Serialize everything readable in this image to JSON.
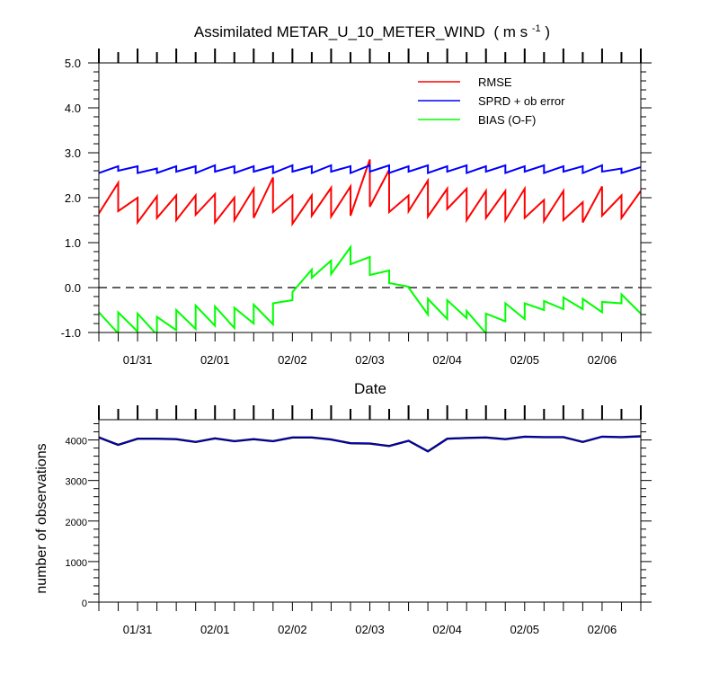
{
  "chart_data": [
    {
      "type": "line",
      "title": "Assimilated METAR_U_10_METER_WIND",
      "title_units": "( m s",
      "title_units_sup": "-1",
      "title_units_end": " )",
      "xlabel": "Date",
      "ylabel": "",
      "ylim": [
        -1.0,
        5.0
      ],
      "yticks": [
        "-1.0",
        "0.0",
        "1.0",
        "2.0",
        "3.0",
        "4.0",
        "5.0"
      ],
      "xlim": [
        0,
        7.0
      ],
      "xtick_labels": [
        "01/31",
        "02/01",
        "02/02",
        "02/03",
        "02/04",
        "02/05",
        "02/06"
      ],
      "xtick_positions": [
        0.5,
        1.5,
        2.5,
        3.5,
        4.5,
        5.5,
        6.5
      ],
      "zero_line": true,
      "legend_position": "top-right",
      "series": [
        {
          "name": "RMSE",
          "color": "#ff0000",
          "segments": [
            [
              [
                0.0,
                1.65
              ],
              [
                0.25,
                2.33
              ]
            ],
            [
              [
                0.25,
                1.7
              ],
              [
                0.5,
                2.0
              ]
            ],
            [
              [
                0.5,
                1.45
              ],
              [
                0.75,
                2.03
              ]
            ],
            [
              [
                0.75,
                1.55
              ],
              [
                1.0,
                2.05
              ]
            ],
            [
              [
                1.0,
                1.5
              ],
              [
                1.25,
                2.05
              ]
            ],
            [
              [
                1.25,
                1.62
              ],
              [
                1.5,
                2.08
              ]
            ],
            [
              [
                1.5,
                1.45
              ],
              [
                1.75,
                2.0
              ]
            ],
            [
              [
                1.75,
                1.5
              ],
              [
                2.0,
                2.2
              ]
            ],
            [
              [
                2.0,
                1.55
              ],
              [
                2.25,
                2.45
              ]
            ],
            [
              [
                2.25,
                1.68
              ],
              [
                2.5,
                2.05
              ]
            ],
            [
              [
                2.5,
                1.42
              ],
              [
                2.75,
                2.05
              ]
            ],
            [
              [
                2.75,
                1.6
              ],
              [
                3.0,
                2.22
              ]
            ],
            [
              [
                3.0,
                1.58
              ],
              [
                3.25,
                2.25
              ]
            ],
            [
              [
                3.25,
                1.6
              ],
              [
                3.5,
                2.85
              ]
            ],
            [
              [
                3.5,
                1.8
              ],
              [
                3.75,
                2.62
              ]
            ],
            [
              [
                3.75,
                1.68
              ],
              [
                4.0,
                2.05
              ]
            ],
            [
              [
                4.0,
                1.7
              ],
              [
                4.25,
                2.38
              ]
            ],
            [
              [
                4.25,
                1.58
              ],
              [
                4.5,
                2.2
              ]
            ],
            [
              [
                4.5,
                1.75
              ],
              [
                4.75,
                2.2
              ]
            ],
            [
              [
                4.75,
                1.5
              ],
              [
                5.0,
                2.15
              ]
            ],
            [
              [
                5.0,
                1.55
              ],
              [
                5.25,
                2.15
              ]
            ],
            [
              [
                5.25,
                1.5
              ],
              [
                5.5,
                2.2
              ]
            ],
            [
              [
                5.5,
                1.55
              ],
              [
                5.75,
                1.95
              ]
            ],
            [
              [
                5.75,
                1.48
              ],
              [
                6.0,
                2.15
              ]
            ],
            [
              [
                6.0,
                1.5
              ],
              [
                6.25,
                1.9
              ]
            ],
            [
              [
                6.25,
                1.45
              ],
              [
                6.5,
                2.25
              ]
            ],
            [
              [
                6.5,
                1.6
              ],
              [
                6.75,
                2.05
              ]
            ],
            [
              [
                6.75,
                1.55
              ],
              [
                7.0,
                2.15
              ]
            ]
          ]
        },
        {
          "name": "SPRD + ob error",
          "color": "#0000ff",
          "segments": [
            [
              [
                0.0,
                2.55
              ],
              [
                0.25,
                2.7
              ]
            ],
            [
              [
                0.25,
                2.6
              ],
              [
                0.5,
                2.7
              ]
            ],
            [
              [
                0.5,
                2.55
              ],
              [
                0.75,
                2.65
              ]
            ],
            [
              [
                0.75,
                2.55
              ],
              [
                1.0,
                2.7
              ]
            ],
            [
              [
                1.0,
                2.58
              ],
              [
                1.25,
                2.7
              ]
            ],
            [
              [
                1.25,
                2.55
              ],
              [
                1.5,
                2.72
              ]
            ],
            [
              [
                1.5,
                2.58
              ],
              [
                1.75,
                2.7
              ]
            ],
            [
              [
                1.75,
                2.55
              ],
              [
                2.0,
                2.7
              ]
            ],
            [
              [
                2.0,
                2.58
              ],
              [
                2.25,
                2.7
              ]
            ],
            [
              [
                2.25,
                2.55
              ],
              [
                2.5,
                2.72
              ]
            ],
            [
              [
                2.5,
                2.58
              ],
              [
                2.75,
                2.7
              ]
            ],
            [
              [
                2.75,
                2.55
              ],
              [
                3.0,
                2.72
              ]
            ],
            [
              [
                3.0,
                2.58
              ],
              [
                3.25,
                2.7
              ]
            ],
            [
              [
                3.25,
                2.55
              ],
              [
                3.5,
                2.72
              ]
            ],
            [
              [
                3.5,
                2.58
              ],
              [
                3.75,
                2.72
              ]
            ],
            [
              [
                3.75,
                2.55
              ],
              [
                4.0,
                2.7
              ]
            ],
            [
              [
                4.0,
                2.58
              ],
              [
                4.25,
                2.72
              ]
            ],
            [
              [
                4.25,
                2.55
              ],
              [
                4.5,
                2.7
              ]
            ],
            [
              [
                4.5,
                2.58
              ],
              [
                4.75,
                2.72
              ]
            ],
            [
              [
                4.75,
                2.55
              ],
              [
                5.0,
                2.7
              ]
            ],
            [
              [
                5.0,
                2.58
              ],
              [
                5.25,
                2.72
              ]
            ],
            [
              [
                5.25,
                2.55
              ],
              [
                5.5,
                2.7
              ]
            ],
            [
              [
                5.5,
                2.58
              ],
              [
                5.75,
                2.72
              ]
            ],
            [
              [
                5.75,
                2.55
              ],
              [
                6.0,
                2.7
              ]
            ],
            [
              [
                6.0,
                2.58
              ],
              [
                6.25,
                2.7
              ]
            ],
            [
              [
                6.25,
                2.55
              ],
              [
                6.5,
                2.72
              ]
            ],
            [
              [
                6.5,
                2.58
              ],
              [
                6.75,
                2.65
              ]
            ],
            [
              [
                6.75,
                2.55
              ],
              [
                7.0,
                2.68
              ]
            ]
          ]
        },
        {
          "name": "BIAS (O-F)",
          "color": "#00ff00",
          "segments": [
            [
              [
                0.0,
                -0.55
              ],
              [
                0.25,
                -1.02
              ]
            ],
            [
              [
                0.25,
                -0.55
              ],
              [
                0.5,
                -0.98
              ]
            ],
            [
              [
                0.5,
                -0.58
              ],
              [
                0.75,
                -1.05
              ]
            ],
            [
              [
                0.75,
                -0.65
              ],
              [
                1.0,
                -0.95
              ]
            ],
            [
              [
                1.0,
                -0.5
              ],
              [
                1.25,
                -0.92
              ]
            ],
            [
              [
                1.25,
                -0.4
              ],
              [
                1.5,
                -0.85
              ]
            ],
            [
              [
                1.5,
                -0.42
              ],
              [
                1.75,
                -0.9
              ]
            ],
            [
              [
                1.75,
                -0.45
              ],
              [
                2.0,
                -0.8
              ]
            ],
            [
              [
                2.0,
                -0.38
              ],
              [
                2.25,
                -0.82
              ]
            ],
            [
              [
                2.25,
                -0.35
              ],
              [
                2.5,
                -0.28
              ]
            ],
            [
              [
                2.5,
                -0.1
              ],
              [
                2.75,
                0.4
              ]
            ],
            [
              [
                2.75,
                0.22
              ],
              [
                3.0,
                0.6
              ]
            ],
            [
              [
                3.0,
                0.3
              ],
              [
                3.25,
                0.9
              ]
            ],
            [
              [
                3.25,
                0.52
              ],
              [
                3.5,
                0.68
              ]
            ],
            [
              [
                3.5,
                0.28
              ],
              [
                3.75,
                0.38
              ]
            ],
            [
              [
                3.75,
                0.1
              ],
              [
                4.0,
                0.02
              ]
            ],
            [
              [
                4.0,
                0.0
              ],
              [
                4.25,
                -0.6
              ]
            ],
            [
              [
                4.25,
                -0.25
              ],
              [
                4.5,
                -0.7
              ]
            ],
            [
              [
                4.5,
                -0.28
              ],
              [
                4.75,
                -0.68
              ]
            ],
            [
              [
                4.75,
                -0.52
              ],
              [
                5.0,
                -1.02
              ]
            ],
            [
              [
                5.0,
                -0.58
              ],
              [
                5.25,
                -0.75
              ]
            ],
            [
              [
                5.25,
                -0.35
              ],
              [
                5.5,
                -0.7
              ]
            ],
            [
              [
                5.5,
                -0.35
              ],
              [
                5.75,
                -0.5
              ]
            ],
            [
              [
                5.75,
                -0.3
              ],
              [
                6.0,
                -0.48
              ]
            ],
            [
              [
                6.0,
                -0.22
              ],
              [
                6.25,
                -0.48
              ]
            ],
            [
              [
                6.25,
                -0.25
              ],
              [
                6.5,
                -0.55
              ]
            ],
            [
              [
                6.5,
                -0.32
              ],
              [
                6.75,
                -0.35
              ]
            ],
            [
              [
                6.75,
                -0.15
              ],
              [
                7.0,
                -0.58
              ]
            ]
          ]
        }
      ]
    },
    {
      "type": "line",
      "title": "",
      "xlabel": "",
      "ylabel": "number of observations",
      "ylim": [
        0,
        4500
      ],
      "yticks": [
        "0",
        "1000",
        "2000",
        "3000",
        "4000"
      ],
      "xlim": [
        0,
        7.0
      ],
      "xtick_labels": [
        "01/31",
        "02/01",
        "02/02",
        "02/03",
        "02/04",
        "02/05",
        "02/06"
      ],
      "xtick_positions": [
        0.5,
        1.5,
        2.5,
        3.5,
        4.5,
        5.5,
        6.5
      ],
      "series": [
        {
          "name": "",
          "color": "#0000ff",
          "x": [
            0.0,
            0.25,
            0.5,
            0.75,
            1.0,
            1.25,
            1.5,
            1.75,
            2.0,
            2.25,
            2.5,
            2.75,
            3.0,
            3.25,
            3.5,
            3.75,
            4.0,
            4.25,
            4.5,
            4.75,
            5.0,
            5.25,
            5.5,
            5.75,
            6.0,
            6.25,
            6.5,
            6.75,
            7.0
          ],
          "values": [
            4060,
            3880,
            4030,
            4030,
            4020,
            3950,
            4040,
            3970,
            4020,
            3970,
            4060,
            4060,
            4010,
            3920,
            3910,
            3850,
            3980,
            3720,
            4030,
            4050,
            4060,
            4020,
            4080,
            4070,
            4070,
            3950,
            4080,
            4070,
            4090
          ]
        }
      ]
    }
  ]
}
